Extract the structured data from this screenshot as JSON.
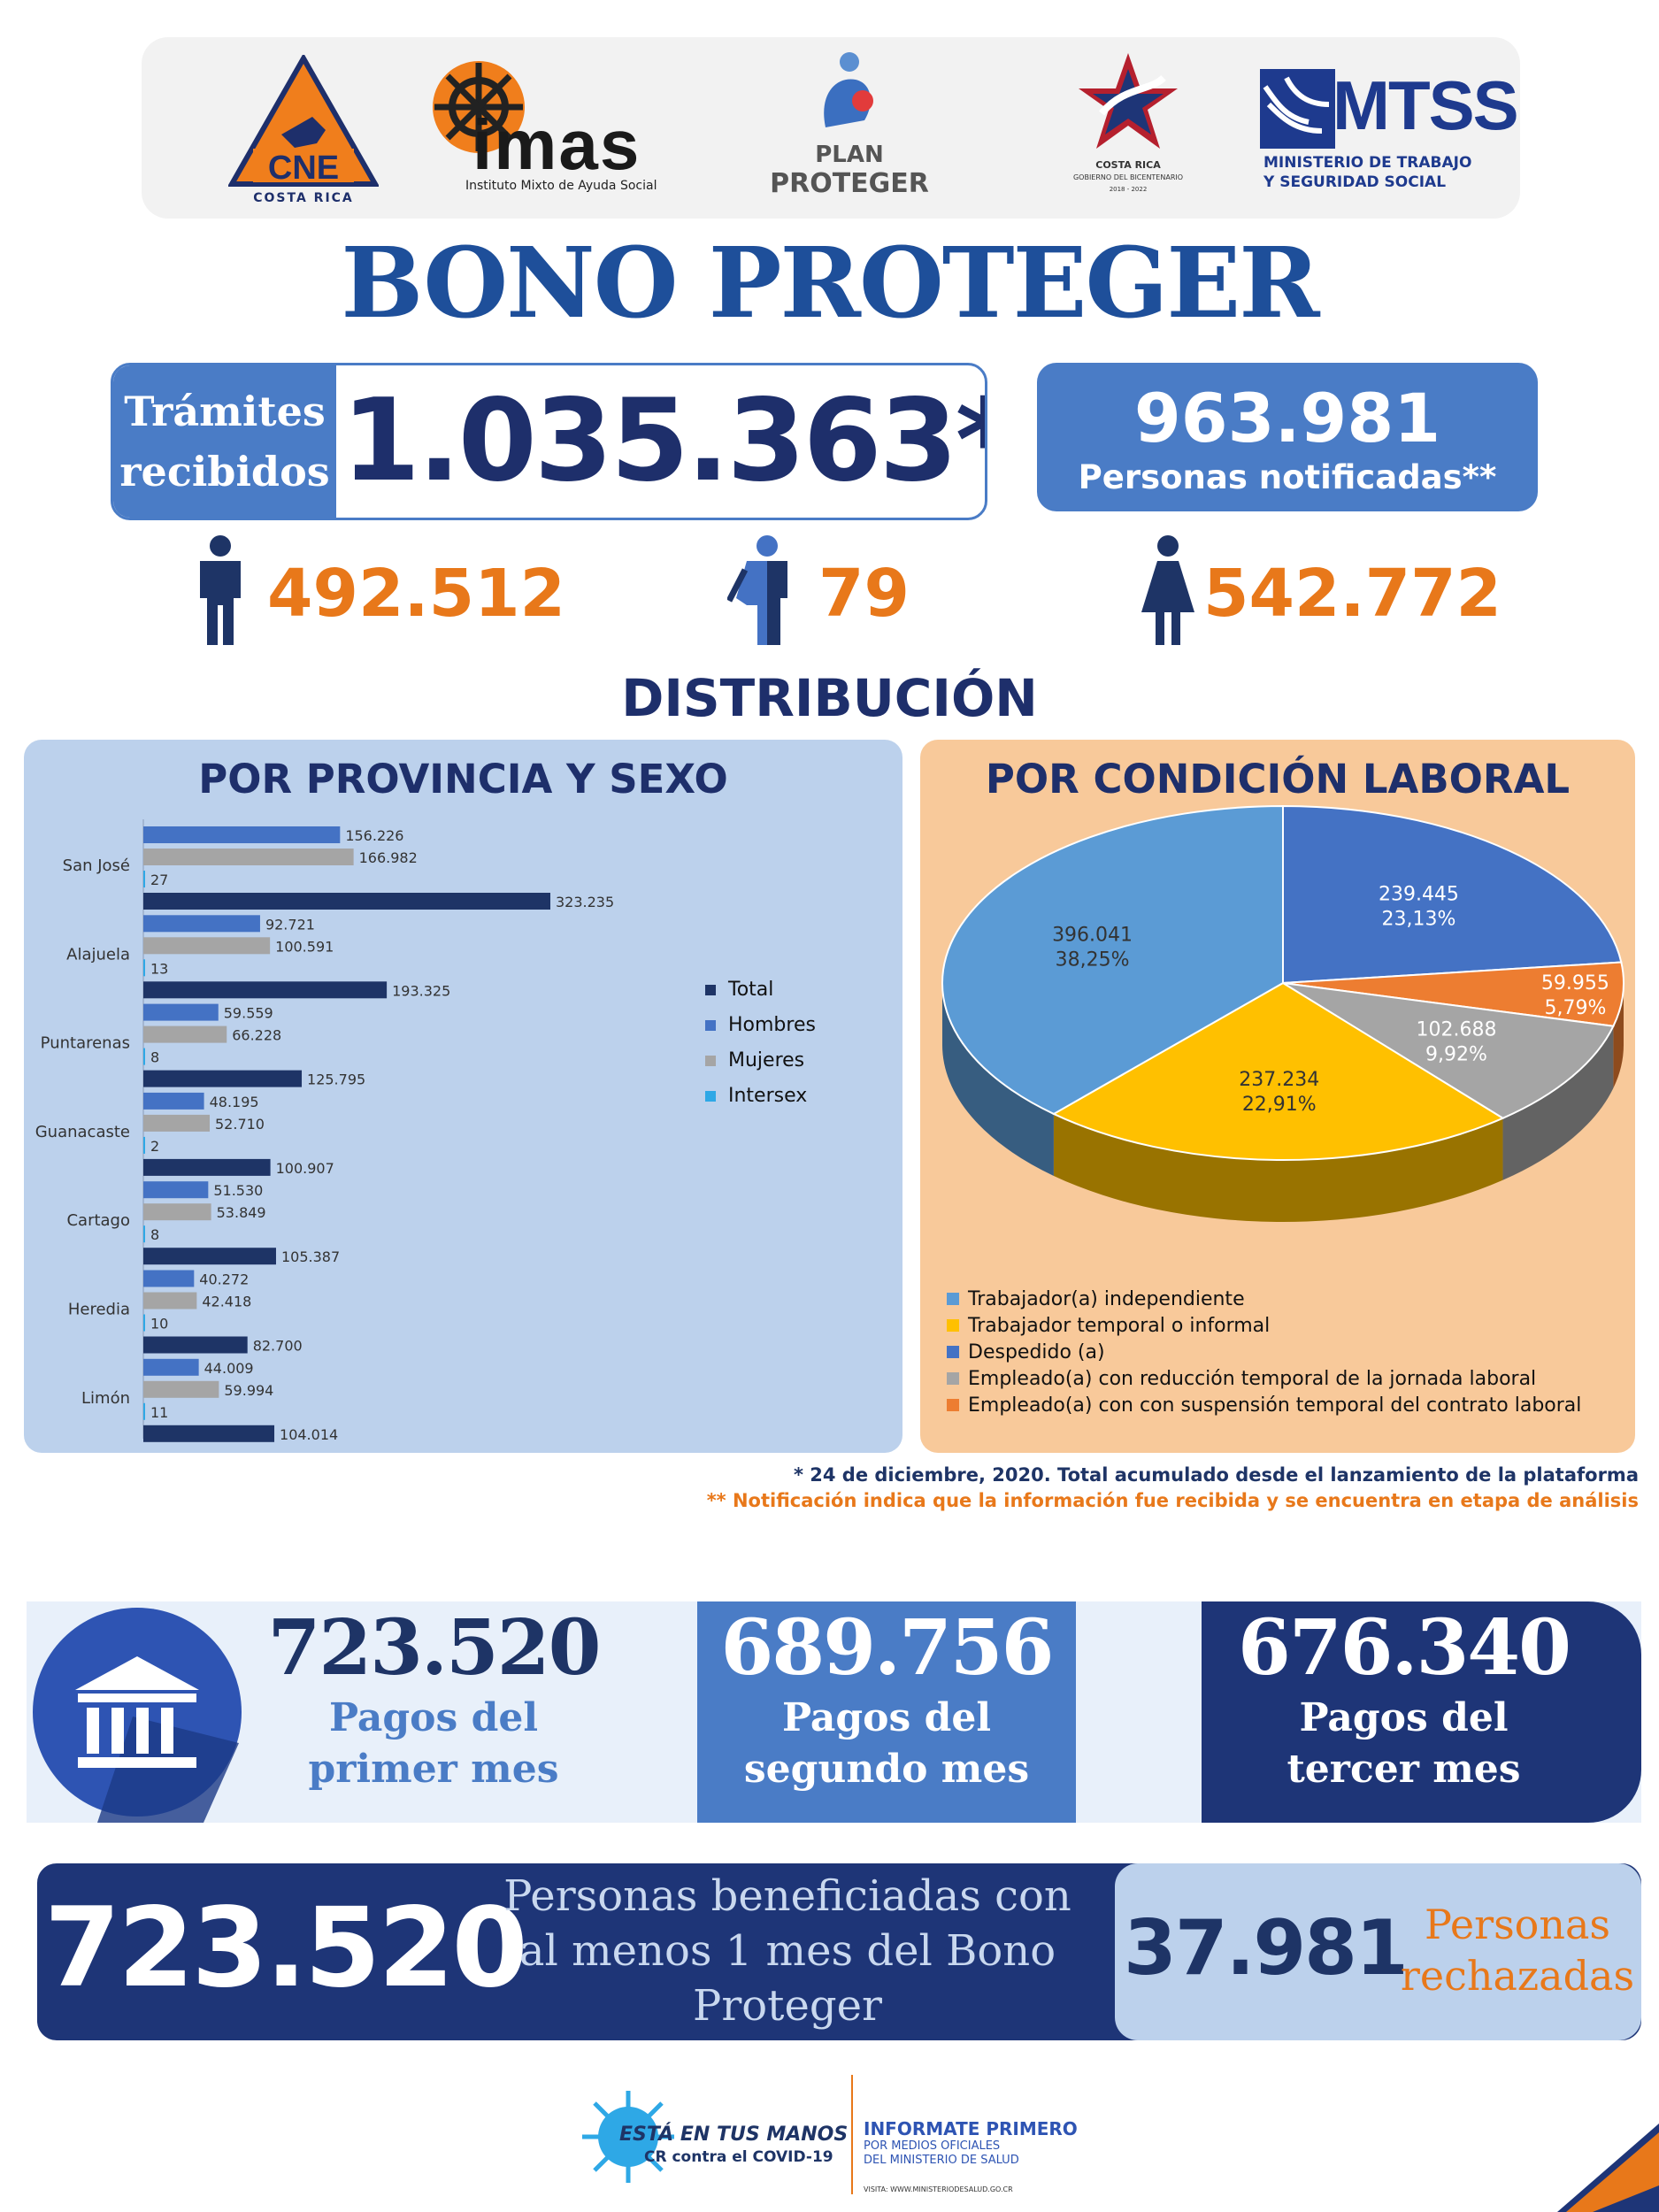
{
  "logos": {
    "cne": {
      "name": "CNE",
      "subtitle": "COSTA RICA"
    },
    "imas": {
      "name": "imas",
      "subtitle": "Instituto Mixto de Ayuda Social"
    },
    "plan": {
      "line1": "PLAN",
      "line2": "PROTEGER"
    },
    "gobierno": {
      "line1": "COSTA RICA",
      "line2": "GOBIERNO DEL BICENTENARIO",
      "line3": "2018 - 2022"
    },
    "mtss": {
      "name": "MTSS",
      "line1": "MINISTERIO DE TRABAJO",
      "line2": "Y SEGURIDAD SOCIAL"
    }
  },
  "title": "BONO PROTEGER",
  "tramites": {
    "label_line1": "Trámites",
    "label_line2": "recibidos",
    "value": "1.035.363*"
  },
  "notificadas": {
    "value": "963.981",
    "label": "Personas notificadas**"
  },
  "gender": {
    "men": "492.512",
    "intersex": "79",
    "women": "542.772"
  },
  "distribution_title": "DISTRIBUCIÓN",
  "colors": {
    "total": "#1e3466",
    "hombres": "#4472c4",
    "mujeres": "#a5a5a5",
    "intersex": "#2ea8e6"
  },
  "chart_data": [
    {
      "type": "bar",
      "orientation": "horizontal",
      "title": "POR PROVINCIA Y SEXO",
      "categories": [
        "San José",
        "Alajuela",
        "Puntarenas",
        "Guanacaste",
        "Cartago",
        "Heredia",
        "Limón"
      ],
      "series": [
        {
          "name": "Hombres",
          "values": [
            156226,
            92721,
            59559,
            48195,
            51530,
            40272,
            44009
          ],
          "labels": [
            "156.226",
            "92.721",
            "59.559",
            "48.195",
            "51.530",
            "40.272",
            "44.009"
          ]
        },
        {
          "name": "Mujeres",
          "values": [
            166982,
            100591,
            66228,
            52710,
            53849,
            42418,
            59994
          ],
          "labels": [
            "166.982",
            "100.591",
            "66.228",
            "52.710",
            "53.849",
            "42.418",
            "59.994"
          ]
        },
        {
          "name": "Intersex",
          "values": [
            27,
            13,
            8,
            2,
            8,
            10,
            11
          ],
          "labels": [
            "27",
            "13",
            "8",
            "2",
            "8",
            "10",
            "11"
          ]
        },
        {
          "name": "Total",
          "values": [
            323235,
            193325,
            125795,
            100907,
            105387,
            82700,
            104014
          ],
          "labels": [
            "323.235",
            "193.325",
            "125.795",
            "100.907",
            "105.387",
            "82.700",
            "104.014"
          ]
        }
      ],
      "legend": [
        "Total",
        "Hombres",
        "Mujeres",
        "Intersex"
      ],
      "legend_position": "right",
      "xlim": [
        0,
        330000
      ]
    },
    {
      "type": "pie",
      "title": "POR CONDICIÓN LABORAL",
      "slices": [
        {
          "name": "Despedido (a)",
          "value": 239445,
          "label": "239.445",
          "percent": "23,13%",
          "color": "#4472c4"
        },
        {
          "name": "Empleado(a) con con suspensión temporal del contrato laboral",
          "value": 59955,
          "label": "59.955",
          "percent": "5,79%",
          "color": "#ed7d31"
        },
        {
          "name": "Empleado(a) con reducción temporal de la jornada laboral",
          "value": 102688,
          "label": "102.688",
          "percent": "9,92%",
          "color": "#a5a5a5"
        },
        {
          "name": "Trabajador temporal o informal",
          "value": 237234,
          "label": "237.234",
          "percent": "22,91%",
          "color": "#ffc000"
        },
        {
          "name": "Trabajador(a) independiente",
          "value": 396041,
          "label": "396.041",
          "percent": "38,25%",
          "color": "#5b9bd5"
        }
      ],
      "legend": [
        {
          "label": "Trabajador(a) independiente",
          "color": "#5b9bd5"
        },
        {
          "label": "Trabajador temporal o informal",
          "color": "#ffc000"
        },
        {
          "label": "Despedido (a)",
          "color": "#4472c4"
        },
        {
          "label": "Empleado(a) con reducción temporal de la jornada laboral",
          "color": "#a5a5a5"
        },
        {
          "label": "Empleado(a) con con suspensión temporal del contrato laboral",
          "color": "#ed7d31"
        }
      ]
    }
  ],
  "footnotes": {
    "note1": "* 24 de diciembre, 2020. Total acumulado desde el lanzamiento de la plataforma",
    "note2": "** Notificación indica que la información fue recibida y se encuentra en etapa de análisis"
  },
  "pagos": [
    {
      "value": "723.520",
      "line1": "Pagos del",
      "line2": "primer mes"
    },
    {
      "value": "689.756",
      "line1": "Pagos del",
      "line2": "segundo mes"
    },
    {
      "value": "676.340",
      "line1": "Pagos del",
      "line2": "tercer mes"
    }
  ],
  "beneficiadas": {
    "value": "723.520",
    "line1": "Personas beneficiadas con",
    "line2": "al menos 1 mes del Bono",
    "line3": "Proteger"
  },
  "rechazadas": {
    "value": "37.981",
    "line1": "Personas",
    "line2": "rechazadas"
  },
  "footer": {
    "campaign_line1": "ESTÁ EN TUS MANOS",
    "campaign_line2": "CR contra el COVID-19",
    "info_title": "INFORMATE PRIMERO",
    "info_line1": "POR MEDIOS OFICIALES",
    "info_line2": "DEL MINISTERIO DE SALUD",
    "visit": "VISITA: WWW.MINISTERIODESALUD.GO.CR"
  }
}
